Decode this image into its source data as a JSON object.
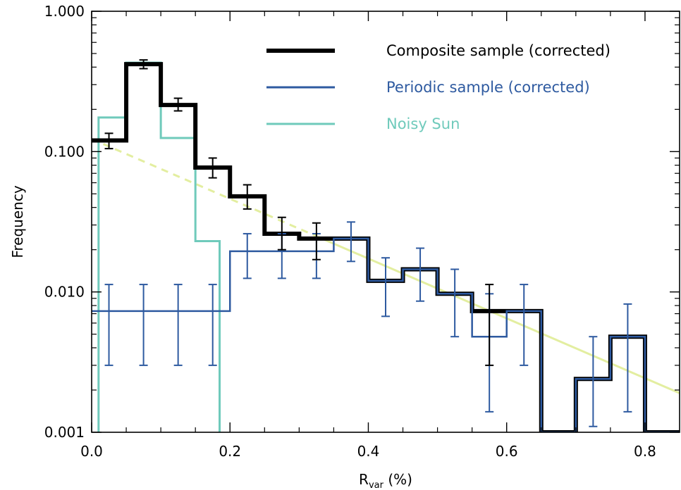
{
  "chart_data": {
    "type": "line",
    "xlabel": "R",
    "xlabel_sub": "var",
    "xlabel_unit": " (%)",
    "ylabel": "Frequency",
    "xlim": [
      0.0,
      0.85
    ],
    "ylim": [
      0.001,
      1.0
    ],
    "yscale": "log",
    "xticks": [
      "0.0",
      "0.2",
      "0.4",
      "0.6",
      "0.8"
    ],
    "xtick_values": [
      0.0,
      0.2,
      0.4,
      0.6,
      0.8
    ],
    "yticks": [
      "0.001",
      "0.010",
      "0.100",
      "1.000"
    ],
    "ytick_values": [
      0.001,
      0.01,
      0.1,
      1.0
    ],
    "grid": false,
    "legend_position": "top-right",
    "series": [
      {
        "name": "Periodic sample (corrected)",
        "color": "#2e5aa0",
        "style": "step",
        "bin_edges": [
          0.0,
          0.05,
          0.1,
          0.15,
          0.2,
          0.25,
          0.3,
          0.35,
          0.4,
          0.45,
          0.5,
          0.55,
          0.6,
          0.65,
          0.7,
          0.75,
          0.8,
          0.85
        ],
        "values": [
          0.0073,
          0.0073,
          0.0073,
          0.0073,
          0.0195,
          0.0195,
          0.0195,
          0.024,
          0.012,
          0.0145,
          0.0097,
          0.0048,
          0.0073,
          0.001,
          0.0024,
          0.0048,
          0.001
        ],
        "errorbars": [
          {
            "x": 0.025,
            "low": 0.003,
            "high": 0.0113
          },
          {
            "x": 0.075,
            "low": 0.003,
            "high": 0.0113
          },
          {
            "x": 0.125,
            "low": 0.003,
            "high": 0.0113
          },
          {
            "x": 0.175,
            "low": 0.003,
            "high": 0.0113
          },
          {
            "x": 0.225,
            "low": 0.0125,
            "high": 0.026
          },
          {
            "x": 0.275,
            "low": 0.0125,
            "high": 0.026
          },
          {
            "x": 0.325,
            "low": 0.0125,
            "high": 0.026
          },
          {
            "x": 0.375,
            "low": 0.0165,
            "high": 0.0315
          },
          {
            "x": 0.425,
            "low": 0.0067,
            "high": 0.0175
          },
          {
            "x": 0.475,
            "low": 0.0086,
            "high": 0.0205
          },
          {
            "x": 0.525,
            "low": 0.0048,
            "high": 0.0145
          },
          {
            "x": 0.575,
            "low": 0.0014,
            "high": 0.0097
          },
          {
            "x": 0.625,
            "low": 0.003,
            "high": 0.0113
          },
          {
            "x": 0.725,
            "low": 0.0011,
            "high": 0.0048
          },
          {
            "x": 0.775,
            "low": 0.0014,
            "high": 0.0082
          }
        ]
      },
      {
        "name": "Composite sample (corrected)",
        "color": "#000000",
        "style": "step",
        "bin_edges": [
          0.0,
          0.05,
          0.1,
          0.15,
          0.2,
          0.25,
          0.3,
          0.35,
          0.4,
          0.45,
          0.5,
          0.55,
          0.6,
          0.65,
          0.7,
          0.75,
          0.8,
          0.85
        ],
        "values": [
          0.12,
          0.42,
          0.215,
          0.077,
          0.048,
          0.026,
          0.024,
          0.024,
          0.012,
          0.0145,
          0.0097,
          0.0073,
          0.0073,
          0.001,
          0.0024,
          0.0048,
          0.001
        ],
        "errorbars": [
          {
            "x": 0.025,
            "low": 0.105,
            "high": 0.135
          },
          {
            "x": 0.075,
            "low": 0.39,
            "high": 0.45
          },
          {
            "x": 0.125,
            "low": 0.195,
            "high": 0.24
          },
          {
            "x": 0.175,
            "low": 0.065,
            "high": 0.09
          },
          {
            "x": 0.225,
            "low": 0.039,
            "high": 0.058
          },
          {
            "x": 0.275,
            "low": 0.02,
            "high": 0.034
          },
          {
            "x": 0.325,
            "low": 0.017,
            "high": 0.031
          },
          {
            "x": 0.575,
            "low": 0.003,
            "high": 0.0113
          }
        ]
      },
      {
        "name": "Noisy Sun",
        "color": "#6fcabb",
        "style": "step",
        "bin_edges": [
          0.0,
          0.01,
          0.05,
          0.1,
          0.15,
          0.185
        ],
        "values": [
          0.0001,
          0.175,
          0.43,
          0.125,
          0.023
        ],
        "errorbars": []
      },
      {
        "name": "",
        "color": "#e3eea0",
        "style": "dashed-then-solid",
        "x": [
          0.0,
          0.85
        ],
        "values": [
          0.123,
          0.0019
        ],
        "dash_until": 0.33
      }
    ],
    "legend_order": [
      1,
      0,
      2
    ]
  }
}
